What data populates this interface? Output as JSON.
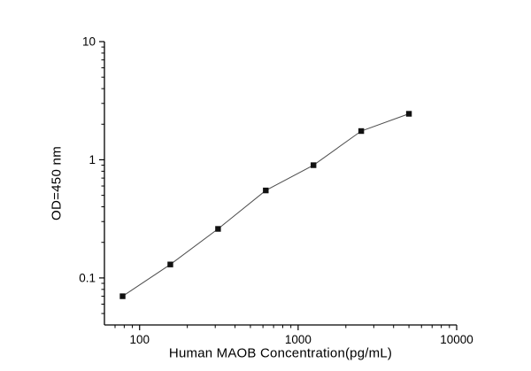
{
  "figure": {
    "background": "#ffffff"
  },
  "chart_data": {
    "type": "line",
    "title": "",
    "xlabel": "Human MAOB Concentration(pg/mL)",
    "ylabel": "OD=450 nm",
    "xscale": "log",
    "yscale": "log",
    "xlim": [
      60,
      10000
    ],
    "ylim": [
      0.04,
      10
    ],
    "x_ticks": [
      100,
      1000,
      10000
    ],
    "x_tick_labels": [
      "100",
      "1000",
      "10000"
    ],
    "y_ticks": [
      0.1,
      1,
      10
    ],
    "y_tick_labels": [
      "0.1",
      "1",
      "10"
    ],
    "x": [
      78.125,
      156.25,
      312.5,
      625,
      1250,
      2500,
      5000
    ],
    "y": [
      0.07,
      0.13,
      0.26,
      0.55,
      0.9,
      1.75,
      2.45
    ],
    "marker": "filled-square",
    "marker_color": "#111111",
    "line_color": "#4d4d4d",
    "axis_color": "#000000",
    "grid": false,
    "legend_position": "none"
  }
}
